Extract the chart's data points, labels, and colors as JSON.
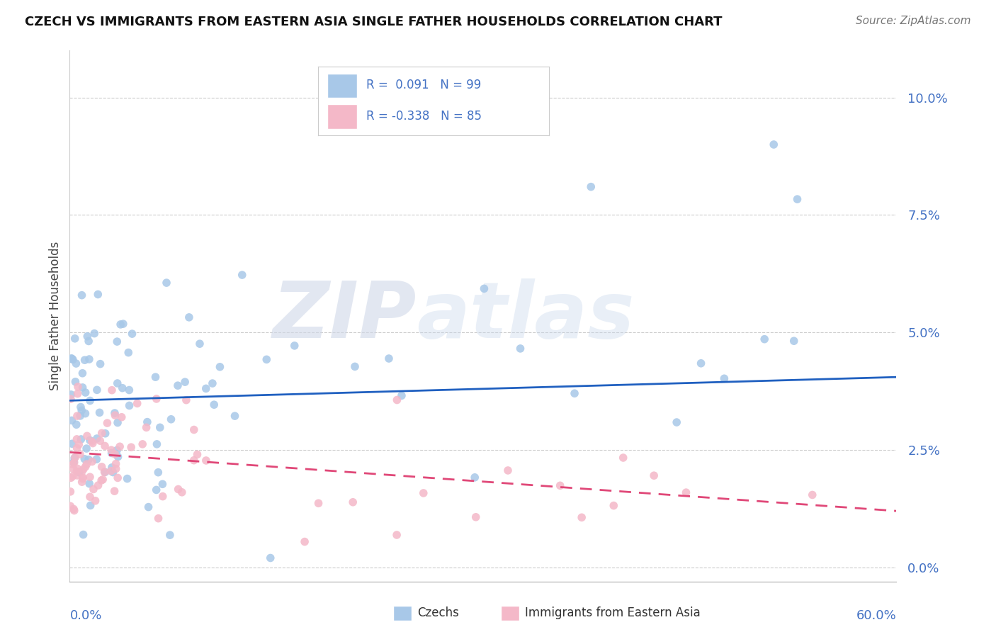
{
  "title": "CZECH VS IMMIGRANTS FROM EASTERN ASIA SINGLE FATHER HOUSEHOLDS CORRELATION CHART",
  "source": "Source: ZipAtlas.com",
  "ylabel": "Single Father Households",
  "ytick_vals": [
    0.0,
    2.5,
    5.0,
    7.5,
    10.0
  ],
  "xlim": [
    0.0,
    60.0
  ],
  "ylim": [
    -0.3,
    11.0
  ],
  "legend_czech_R": "0.091",
  "legend_czech_N": "99",
  "legend_imm_R": "-0.338",
  "legend_imm_N": "85",
  "czech_color": "#a8c8e8",
  "imm_color": "#f4b8c8",
  "czech_line_color": "#2060c0",
  "imm_line_color": "#e04878",
  "background_color": "#ffffff",
  "czech_line_start_y": 3.55,
  "czech_line_end_y": 4.05,
  "imm_line_start_y": 2.45,
  "imm_line_end_y": 1.2
}
